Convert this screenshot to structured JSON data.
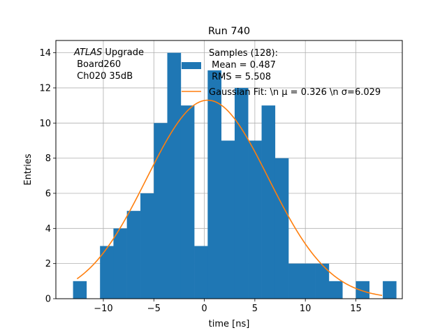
{
  "chart_data": {
    "type": "bar",
    "title": "Run 740",
    "xlabel": "time [ns]",
    "ylabel": "Entries",
    "xlim": [
      -14.7,
      19.6
    ],
    "ylim": [
      0,
      14.7
    ],
    "xticks": [
      -10,
      -5,
      0,
      5,
      10,
      15
    ],
    "xtick_labels": [
      "−10",
      "−5",
      "0",
      "5",
      "10",
      "15"
    ],
    "yticks": [
      0,
      2,
      4,
      6,
      8,
      10,
      12,
      14
    ],
    "ytick_labels": [
      "0",
      "2",
      "4",
      "6",
      "8",
      "10",
      "12",
      "14"
    ],
    "grid": true,
    "annotation": {
      "lines": [
        {
          "italic": "ATLAS",
          "rest": " Upgrade"
        },
        {
          "italic": "",
          "rest": " Board260"
        },
        {
          "italic": "",
          "rest": " Ch020 35dB"
        }
      ]
    },
    "legend": {
      "placement": "top-right",
      "entries": [
        {
          "label_lines": [
            "Samples (128):",
            " Mean = 0.487",
            " RMS = 5.508"
          ],
          "kind": "patch",
          "color": "#1f77b4"
        },
        {
          "label_lines": [
            "Gaussian Fit: \\n μ = 0.326 \\n σ=6.029"
          ],
          "kind": "line",
          "color": "#ff7f0e"
        }
      ]
    },
    "histogram": {
      "name": "Samples (128):",
      "color": "#1f77b4",
      "bin_edges": [
        -13.0,
        -11.67,
        -10.33,
        -9.0,
        -7.67,
        -6.33,
        -5.0,
        -3.67,
        -2.33,
        -1.0,
        0.33,
        1.67,
        3.0,
        4.33,
        5.67,
        7.0,
        8.33,
        9.67,
        11.0,
        12.33,
        13.67,
        15.0,
        16.33,
        17.67,
        19.0
      ],
      "counts": [
        1,
        0,
        3,
        4,
        5,
        6,
        10,
        14,
        11,
        3,
        13,
        9,
        12,
        9,
        11,
        8,
        2,
        2,
        2,
        1,
        0,
        1,
        0,
        1
      ]
    },
    "fit": {
      "name": "Gaussian Fit",
      "color": "#ff7f0e",
      "mu": 0.326,
      "sigma": 6.029,
      "amplitude": 11.3,
      "x_range": [
        -12.6,
        17.6
      ]
    }
  }
}
